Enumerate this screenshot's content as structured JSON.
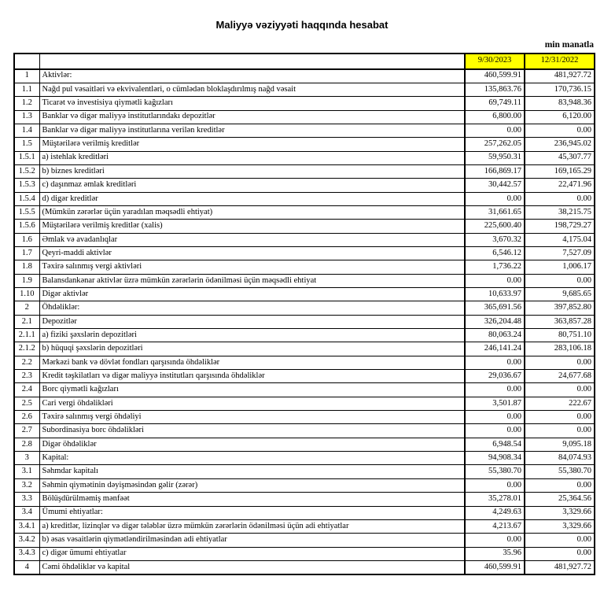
{
  "title": "Maliyyə vəziyyəti haqqında hesabat",
  "unit_note": "min manatla",
  "table": {
    "header": {
      "current": "9/30/2023",
      "prior": "12/31/2022",
      "highlight_color": "#FFFF00"
    },
    "rows": [
      {
        "no": "1",
        "label": "Aktivlər:",
        "v1": "460,599.91",
        "v2": "481,927.72",
        "bold_label": true,
        "bold_values": true
      },
      {
        "no": "1.1",
        "label": "Nağd pul vəsaitləri və  ekvivalentləri, o cümlədən bloklaşdırılmış nağd vəsait",
        "v1": "135,863.76",
        "v2": "170,736.15",
        "bold_label": false,
        "bold_values": true
      },
      {
        "no": "1.2",
        "label": "Ticarət və investisiya qiymətli kağızları",
        "v1": "69,749.11",
        "v2": "83,948.36",
        "bold_label": false,
        "bold_values": true
      },
      {
        "no": "1.3",
        "label": "Banklar və digər maliyyə institutlarındakı depozitlər",
        "v1": "6,800.00",
        "v2": "6,120.00",
        "bold_label": false,
        "bold_values": true
      },
      {
        "no": "1.4",
        "label": "Banklar və digər maliyyə institutlarına verilən kreditlər",
        "v1": "0.00",
        "v2": "0.00",
        "bold_label": false,
        "bold_values": true
      },
      {
        "no": "1.5",
        "label": "Müştərilərə verilmiş kreditlər",
        "v1": "257,262.05",
        "v2": "236,945.02",
        "bold_label": false,
        "bold_values": true
      },
      {
        "no": "1.5.1",
        "label": "a) istehlak kreditləri",
        "v1": "59,950.31",
        "v2": "45,307.77",
        "bold_label": false,
        "bold_values": false
      },
      {
        "no": "1.5.2",
        "label": "b) biznes kreditləri",
        "v1": "166,869.17",
        "v2": "169,165.29",
        "bold_label": false,
        "bold_values": false
      },
      {
        "no": "1.5.3",
        "label": "c) daşınmaz əmlak kreditləri",
        "v1": "30,442.57",
        "v2": "22,471.96",
        "bold_label": false,
        "bold_values": false
      },
      {
        "no": "1.5.4",
        "label": "d) digər kreditlər",
        "v1": "0.00",
        "v2": "0.00",
        "bold_label": false,
        "bold_values": false
      },
      {
        "no": "1.5.5",
        "label": "(Mümkün zərərlər üçün yaradılan məqsədli ehtiyat)",
        "v1": "31,661.65",
        "v2": "38,215.75",
        "bold_label": false,
        "bold_values": false
      },
      {
        "no": "1.5.6",
        "label": "Müştərilərə verilmiş kreditlər (xalis)",
        "v1": "225,600.40",
        "v2": "198,729.27",
        "bold_label": false,
        "bold_values": true
      },
      {
        "no": "1.6",
        "label": "Əmlak və avadanlıqlar",
        "v1": "3,670.32",
        "v2": "4,175.04",
        "bold_label": false,
        "bold_values": true
      },
      {
        "no": "1.7",
        "label": "Qeyri-maddi aktivlər",
        "v1": "6,546.12",
        "v2": "7,527.09",
        "bold_label": false,
        "bold_values": true
      },
      {
        "no": "1.8",
        "label": "Təxirə salınmış vergi aktivləri",
        "v1": "1,736.22",
        "v2": "1,006.17",
        "bold_label": false,
        "bold_values": true
      },
      {
        "no": "1.9",
        "label": "Balansdankənar aktivlər üzrə mümkün zərərlərin ödənilməsi üçün məqsədli ehtiyat",
        "v1": "0.00",
        "v2": "0.00",
        "bold_label": false,
        "bold_values": false
      },
      {
        "no": "1.10",
        "label": "Digər aktivlər",
        "v1": "10,633.97",
        "v2": "9,685.65",
        "bold_label": false,
        "bold_values": true
      },
      {
        "no": "2",
        "label": "Öhdəliklər:",
        "v1": "365,691.56",
        "v2": "397,852.80",
        "bold_label": true,
        "bold_values": true
      },
      {
        "no": "2.1",
        "label": "Depozitlər",
        "v1": "326,204.48",
        "v2": "363,857.28",
        "bold_label": false,
        "bold_values": true
      },
      {
        "no": "2.1.1",
        "label": "a) fiziki şəxslərin depozitləri",
        "v1": "80,063.24",
        "v2": "80,751.10",
        "bold_label": false,
        "bold_values": false
      },
      {
        "no": "2.1.2",
        "label": "b) hüquqi şəxslərin depozitləri",
        "v1": "246,141.24",
        "v2": "283,106.18",
        "bold_label": false,
        "bold_values": false
      },
      {
        "no": "2.2",
        "label": "Mərkəzi bank və dövlət fondları qarşısında öhdəliklər",
        "v1": "0.00",
        "v2": "0.00",
        "bold_label": false,
        "bold_values": true
      },
      {
        "no": "2.3",
        "label": "Kredit təşkilatları və digər maliyyə institutları qarşısında öhdəliklər",
        "v1": "29,036.67",
        "v2": "24,677.68",
        "bold_label": false,
        "bold_values": true
      },
      {
        "no": "2.4",
        "label": "Borc qiymətli kağızları",
        "v1": "0.00",
        "v2": "0.00",
        "bold_label": false,
        "bold_values": true
      },
      {
        "no": "2.5",
        "label": "Cari vergi öhdəlikləri",
        "v1": "3,501.87",
        "v2": "222.67",
        "bold_label": false,
        "bold_values": true
      },
      {
        "no": "2.6",
        "label": "Təxirə salınmış vergi öhdəliyi",
        "v1": "0.00",
        "v2": "0.00",
        "bold_label": false,
        "bold_values": false
      },
      {
        "no": "2.7",
        "label": "Subordinasiya borc öhdəlikləri",
        "v1": "0.00",
        "v2": "0.00",
        "bold_label": false,
        "bold_values": false
      },
      {
        "no": "2.8",
        "label": "Digər öhdəliklər",
        "v1": "6,948.54",
        "v2": "9,095.18",
        "bold_label": false,
        "bold_values": true
      },
      {
        "no": "3",
        "label": "Kapital:",
        "v1": "94,908.34",
        "v2": "84,074.93",
        "bold_label": true,
        "bold_values": true
      },
      {
        "no": "3.1",
        "label": "Səhmdar kapitalı",
        "v1": "55,380.70",
        "v2": "55,380.70",
        "bold_label": false,
        "bold_values": true
      },
      {
        "no": "3.2",
        "label": "Səhmin qiymətinin dəyişməsindən gəlir (zərər)",
        "v1": "0.00",
        "v2": "0.00",
        "bold_label": false,
        "bold_values": true
      },
      {
        "no": "3.3",
        "label": "Bölüşdürülməmiş mənfəət",
        "v1": "35,278.01",
        "v2": "25,364.56",
        "bold_label": false,
        "bold_values": true
      },
      {
        "no": "3.4",
        "label": "Ümumi ehtiyatlar:",
        "v1": "4,249.63",
        "v2": "3,329.66",
        "bold_label": false,
        "bold_values": true
      },
      {
        "no": "3.4.1",
        "label": "a) kreditlər, lizinqlər və digər tələblər üzrə mümkün zərərlərin ödənilməsi üçün adi ehtiyatlar",
        "v1": "4,213.67",
        "v2": "3,329.66",
        "bold_label": false,
        "bold_values": false
      },
      {
        "no": "3.4.2",
        "label": "b) əsas vəsaitlərin qiymətləndirilməsindən adi ehtiyatlar",
        "v1": "0.00",
        "v2": "0.00",
        "bold_label": false,
        "bold_values": false
      },
      {
        "no": "3.4.3",
        "label": "c) digər ümumi ehtiyatlar",
        "v1": "35.96",
        "v2": "0.00",
        "bold_label": false,
        "bold_values": false
      },
      {
        "no": "4",
        "label": "Cəmi öhdəliklər və kapital",
        "v1": "460,599.91",
        "v2": "481,927.72",
        "bold_label": true,
        "bold_values": true
      }
    ]
  }
}
